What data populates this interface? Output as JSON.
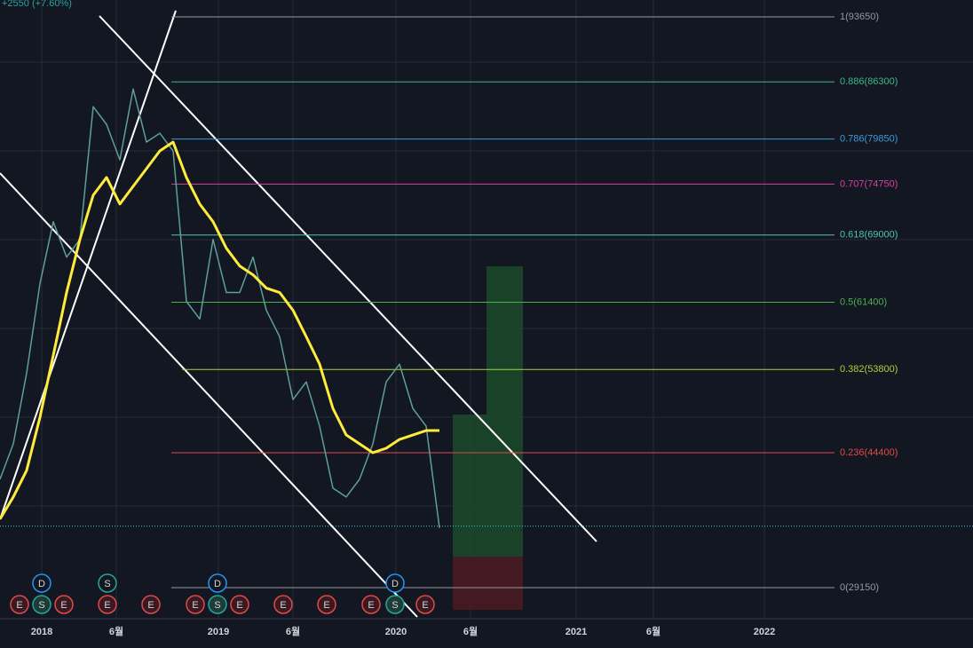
{
  "price_chart": {
    "header": "+2550 (+7.60%)",
    "price_range": [
      25338,
      95556
    ],
    "last_price": 36100,
    "fib_levels": [
      {
        "label": "1(93650)",
        "value": 93650,
        "color": "#9598a1"
      },
      {
        "label": "0.886(86300)",
        "value": 86300,
        "color": "#3bb88a"
      },
      {
        "label": "0.786(79850)",
        "value": 79850,
        "color": "#3a9ad9"
      },
      {
        "label": "0.707(74750)",
        "value": 74750,
        "color": "#d6409f"
      },
      {
        "label": "0.618(69000)",
        "value": 69000,
        "color": "#4fc3b4"
      },
      {
        "label": "0.5(61400)",
        "value": 61400,
        "color": "#4caf50"
      },
      {
        "label": "0.382(53800)",
        "value": 53800,
        "color": "#a6d33a"
      },
      {
        "label": "0.236(44400)",
        "value": 44400,
        "color": "#e04a4a"
      },
      {
        "label": "0(29150)",
        "value": 29150,
        "color": "#9598a1"
      }
    ],
    "time_labels": [
      "2018",
      "6월",
      "2019",
      "6월",
      "2020",
      "6월",
      "2021",
      "6월",
      "2022"
    ],
    "series": [
      {
        "name": "price",
        "color": "#5e9f98",
        "values": [
          41400,
          45400,
          53400,
          63500,
          70500,
          66500,
          68500,
          83500,
          81500,
          77500,
          85500,
          79500,
          80500,
          78500,
          61500,
          59500,
          68500,
          62500,
          62500,
          66500,
          60500,
          57500,
          50400,
          52400,
          47400,
          40400,
          39400,
          41400,
          45400,
          52400,
          54400,
          49400,
          47400,
          35900
        ]
      },
      {
        "name": "ma",
        "color": "#ffeb3b",
        "values": [
          36900,
          39400,
          42400,
          48400,
          55400,
          62500,
          68500,
          73500,
          75500,
          72500,
          74500,
          76500,
          78500,
          79500,
          75500,
          72500,
          70500,
          67500,
          65500,
          64500,
          63000,
          62500,
          60500,
          57500,
          54400,
          49400,
          46400,
          45400,
          44400,
          44900,
          45900,
          46400,
          46900,
          46900
        ]
      }
    ],
    "events_top": [
      "D",
      "S",
      "D",
      "D"
    ],
    "events_bottom": [
      "E",
      "S",
      "E",
      "E",
      "E",
      "E",
      "S",
      "E",
      "E",
      "E",
      "E",
      "S",
      "E"
    ]
  }
}
